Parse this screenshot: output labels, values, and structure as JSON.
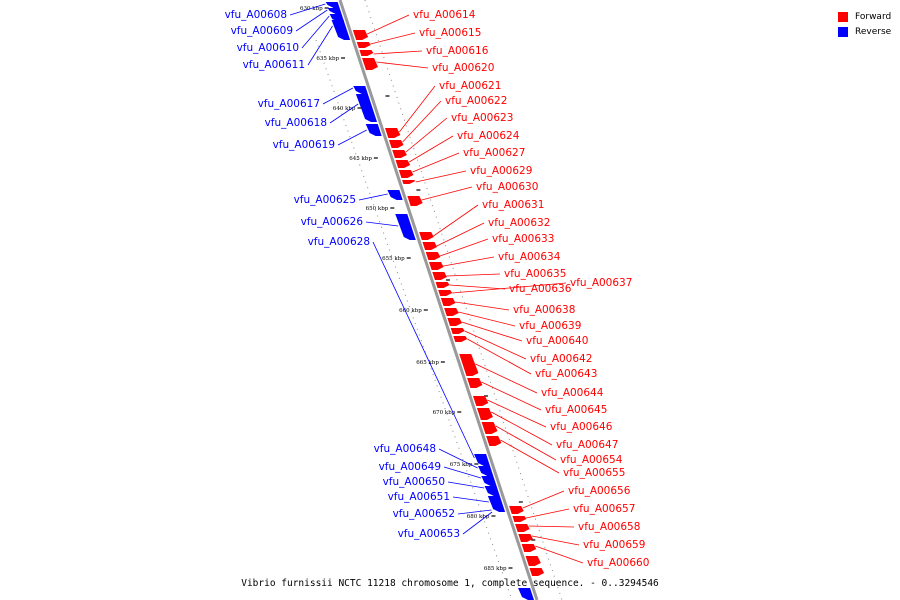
{
  "caption": "Vibrio furnissii NCTC 11218 chromosome 1, complete sequence. - 0..3294546",
  "legend": [
    {
      "label": "Forward",
      "color": "#ff0000"
    },
    {
      "label": "Reverse",
      "color": "#0000ff"
    }
  ],
  "colors": {
    "forward": "#ff0000",
    "reverse": "#0000ff",
    "backbone": "#9a9a9a"
  },
  "ticks": [
    "630 kbp",
    "635 kbp",
    "640 kbp",
    "645 kbp",
    "650 kbp",
    "655 kbp",
    "660 kbp",
    "665 kbp",
    "670 kbp",
    "675 kbp",
    "680 kbp",
    "685 kbp"
  ],
  "forward_genes": [
    "vfu_A00614",
    "vfu_A00615",
    "vfu_A00616",
    "vfu_A00620",
    "vfu_A00621",
    "vfu_A00622",
    "vfu_A00623",
    "vfu_A00624",
    "vfu_A00627",
    "vfu_A00629",
    "vfu_A00630",
    "vfu_A00631",
    "vfu_A00632",
    "vfu_A00633",
    "vfu_A00634",
    "vfu_A00635",
    "vfu_A00636",
    "vfu_A00637",
    "vfu_A00638",
    "vfu_A00639",
    "vfu_A00640",
    "vfu_A00642",
    "vfu_A00643",
    "vfu_A00644",
    "vfu_A00645",
    "vfu_A00646",
    "vfu_A00647",
    "vfu_A00654",
    "vfu_A00655",
    "vfu_A00656",
    "vfu_A00657",
    "vfu_A00658",
    "vfu_A00659",
    "vfu_A00660"
  ],
  "reverse_genes": [
    "vfu_A00608",
    "vfu_A00609",
    "vfu_A00610",
    "vfu_A00611",
    "vfu_A00617",
    "vfu_A00618",
    "vfu_A00619",
    "vfu_A00625",
    "vfu_A00626",
    "vfu_A00628",
    "vfu_A00648",
    "vfu_A00649",
    "vfu_A00650",
    "vfu_A00651",
    "vfu_A00652",
    "vfu_A00653"
  ]
}
